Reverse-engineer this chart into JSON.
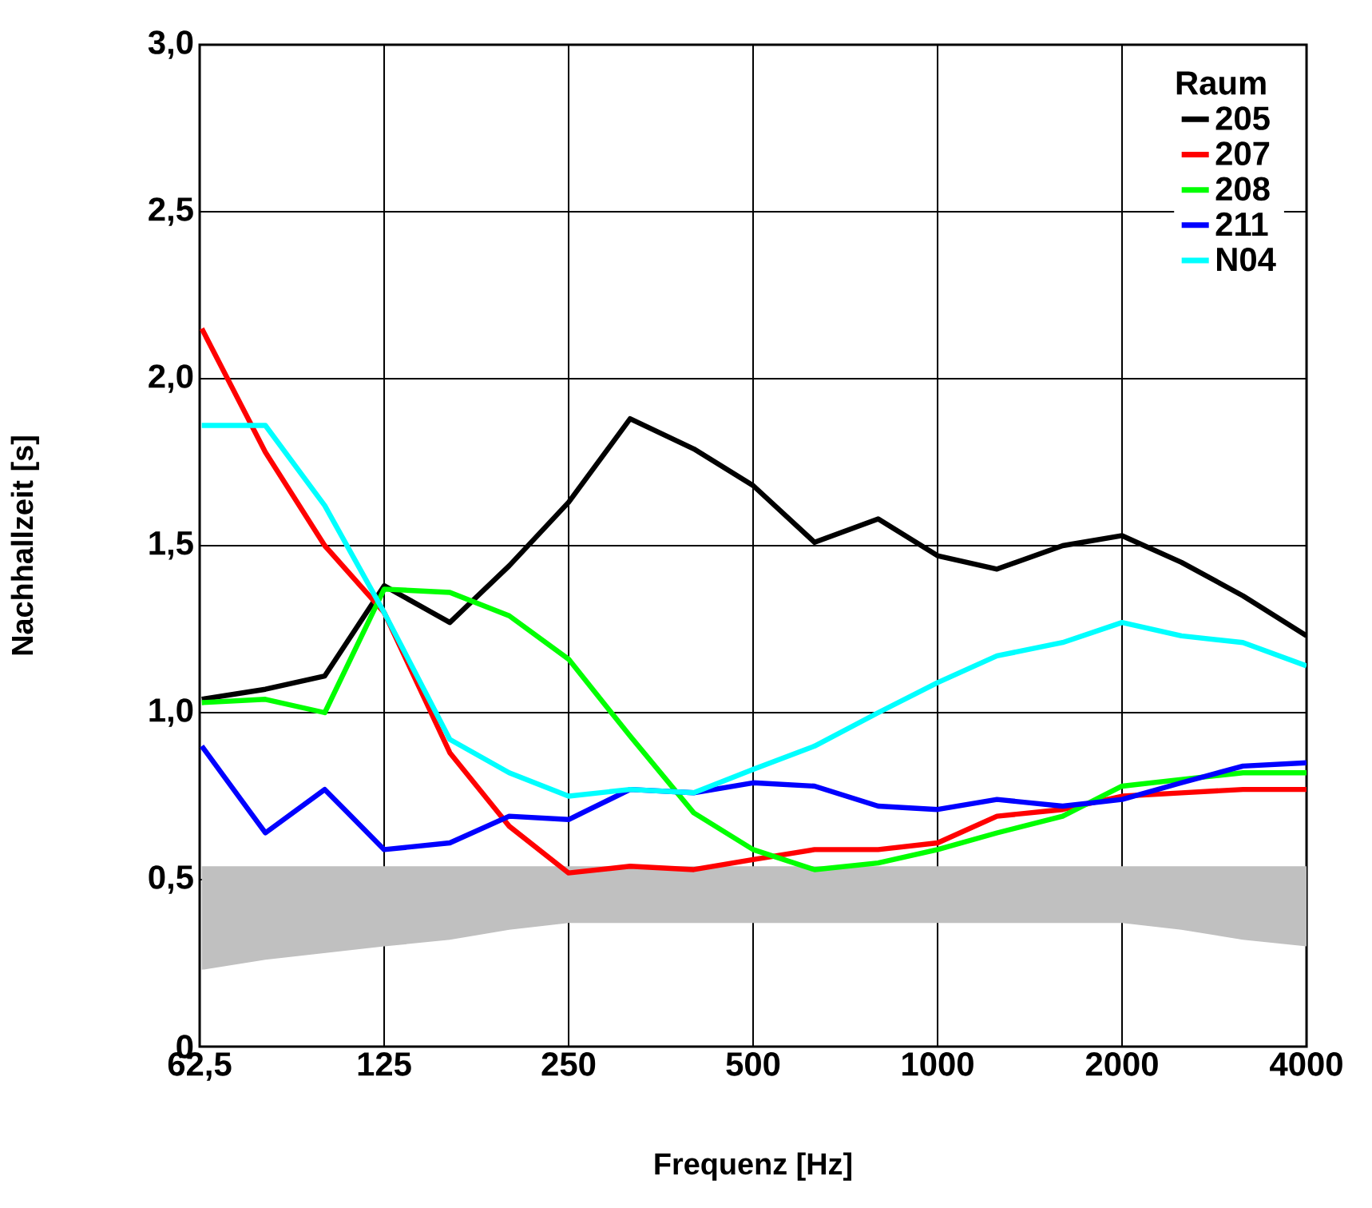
{
  "chart_data": {
    "type": "line",
    "xlabel": "Frequenz [Hz]",
    "ylabel": "Nachhallzeit [s]",
    "legend_title": "Raum",
    "legend": "top right",
    "grid": true,
    "log": "x",
    "line_style": "solid",
    "x": [
      63,
      80,
      100,
      125,
      160,
      200,
      250,
      315,
      400,
      500,
      630,
      800,
      1000,
      1250,
      1600,
      2000,
      2500,
      3150,
      4000
    ],
    "xlim": [
      62.5,
      4000
    ],
    "xticks": [
      {
        "value": 62.5,
        "label": "62,5"
      },
      125,
      250,
      500,
      1000,
      2000,
      4000
    ],
    "ylim": [
      0,
      3
    ],
    "yticks": [
      0,
      {
        "value": 0.5,
        "label": "0,5"
      },
      {
        "value": 1,
        "label": "1,0"
      },
      {
        "value": 1.5,
        "label": "1,5"
      },
      {
        "value": 2,
        "label": "2,0"
      },
      {
        "value": 2.5,
        "label": "2,5"
      },
      {
        "value": 3,
        "label": "3,0"
      }
    ],
    "series": [
      {
        "color": "#c0c0c0",
        "values": [
          null,
          null,
          null,
          null,
          null,
          null,
          null,
          null,
          null,
          null,
          null,
          null,
          null,
          null,
          null,
          null,
          null,
          null,
          null
        ],
        "upper": [
          0.54,
          0.54,
          0.54,
          0.54,
          0.54,
          0.54,
          0.54,
          0.54,
          0.54,
          0.54,
          0.54,
          0.54,
          0.54,
          0.54,
          0.54,
          0.54,
          0.54,
          0.54,
          0.54
        ],
        "lower": [
          0.23,
          0.26,
          0.28,
          0.3,
          0.32,
          0.35,
          0.37,
          0.37,
          0.37,
          0.37,
          0.37,
          0.37,
          0.37,
          0.37,
          0.37,
          0.37,
          0.35,
          0.32,
          0.3
        ]
      },
      {
        "name": "205",
        "color": "#000000",
        "values": [
          1.04,
          1.07,
          1.11,
          1.38,
          1.27,
          1.44,
          1.63,
          1.88,
          1.79,
          1.68,
          1.51,
          1.58,
          1.47,
          1.43,
          1.5,
          1.53,
          1.45,
          1.35,
          1.23
        ]
      },
      {
        "name": "207",
        "color": "#ff0000",
        "values": [
          2.15,
          1.78,
          1.5,
          1.3,
          0.88,
          0.66,
          0.52,
          0.54,
          0.53,
          0.56,
          0.59,
          0.59,
          0.61,
          0.69,
          0.71,
          0.75,
          0.76,
          0.77,
          0.77
        ]
      },
      {
        "name": "208",
        "color": "#00ff00",
        "values": [
          1.03,
          1.04,
          1.0,
          1.37,
          1.36,
          1.29,
          1.16,
          0.93,
          0.7,
          0.59,
          0.53,
          0.55,
          0.59,
          0.64,
          0.69,
          0.78,
          0.8,
          0.82,
          0.82
        ]
      },
      {
        "name": "211",
        "color": "#0000ff",
        "values": [
          0.9,
          0.64,
          0.77,
          0.59,
          0.61,
          0.69,
          0.68,
          0.77,
          0.76,
          0.79,
          0.78,
          0.72,
          0.71,
          0.74,
          0.72,
          0.74,
          0.79,
          0.84,
          0.85
        ]
      },
      {
        "name": "N04",
        "color": "#00ffff",
        "values": [
          1.86,
          1.86,
          1.62,
          1.3,
          0.92,
          0.82,
          0.75,
          0.77,
          0.76,
          0.83,
          0.9,
          1.0,
          1.09,
          1.17,
          1.21,
          1.27,
          1.23,
          1.21,
          1.14
        ]
      }
    ]
  }
}
